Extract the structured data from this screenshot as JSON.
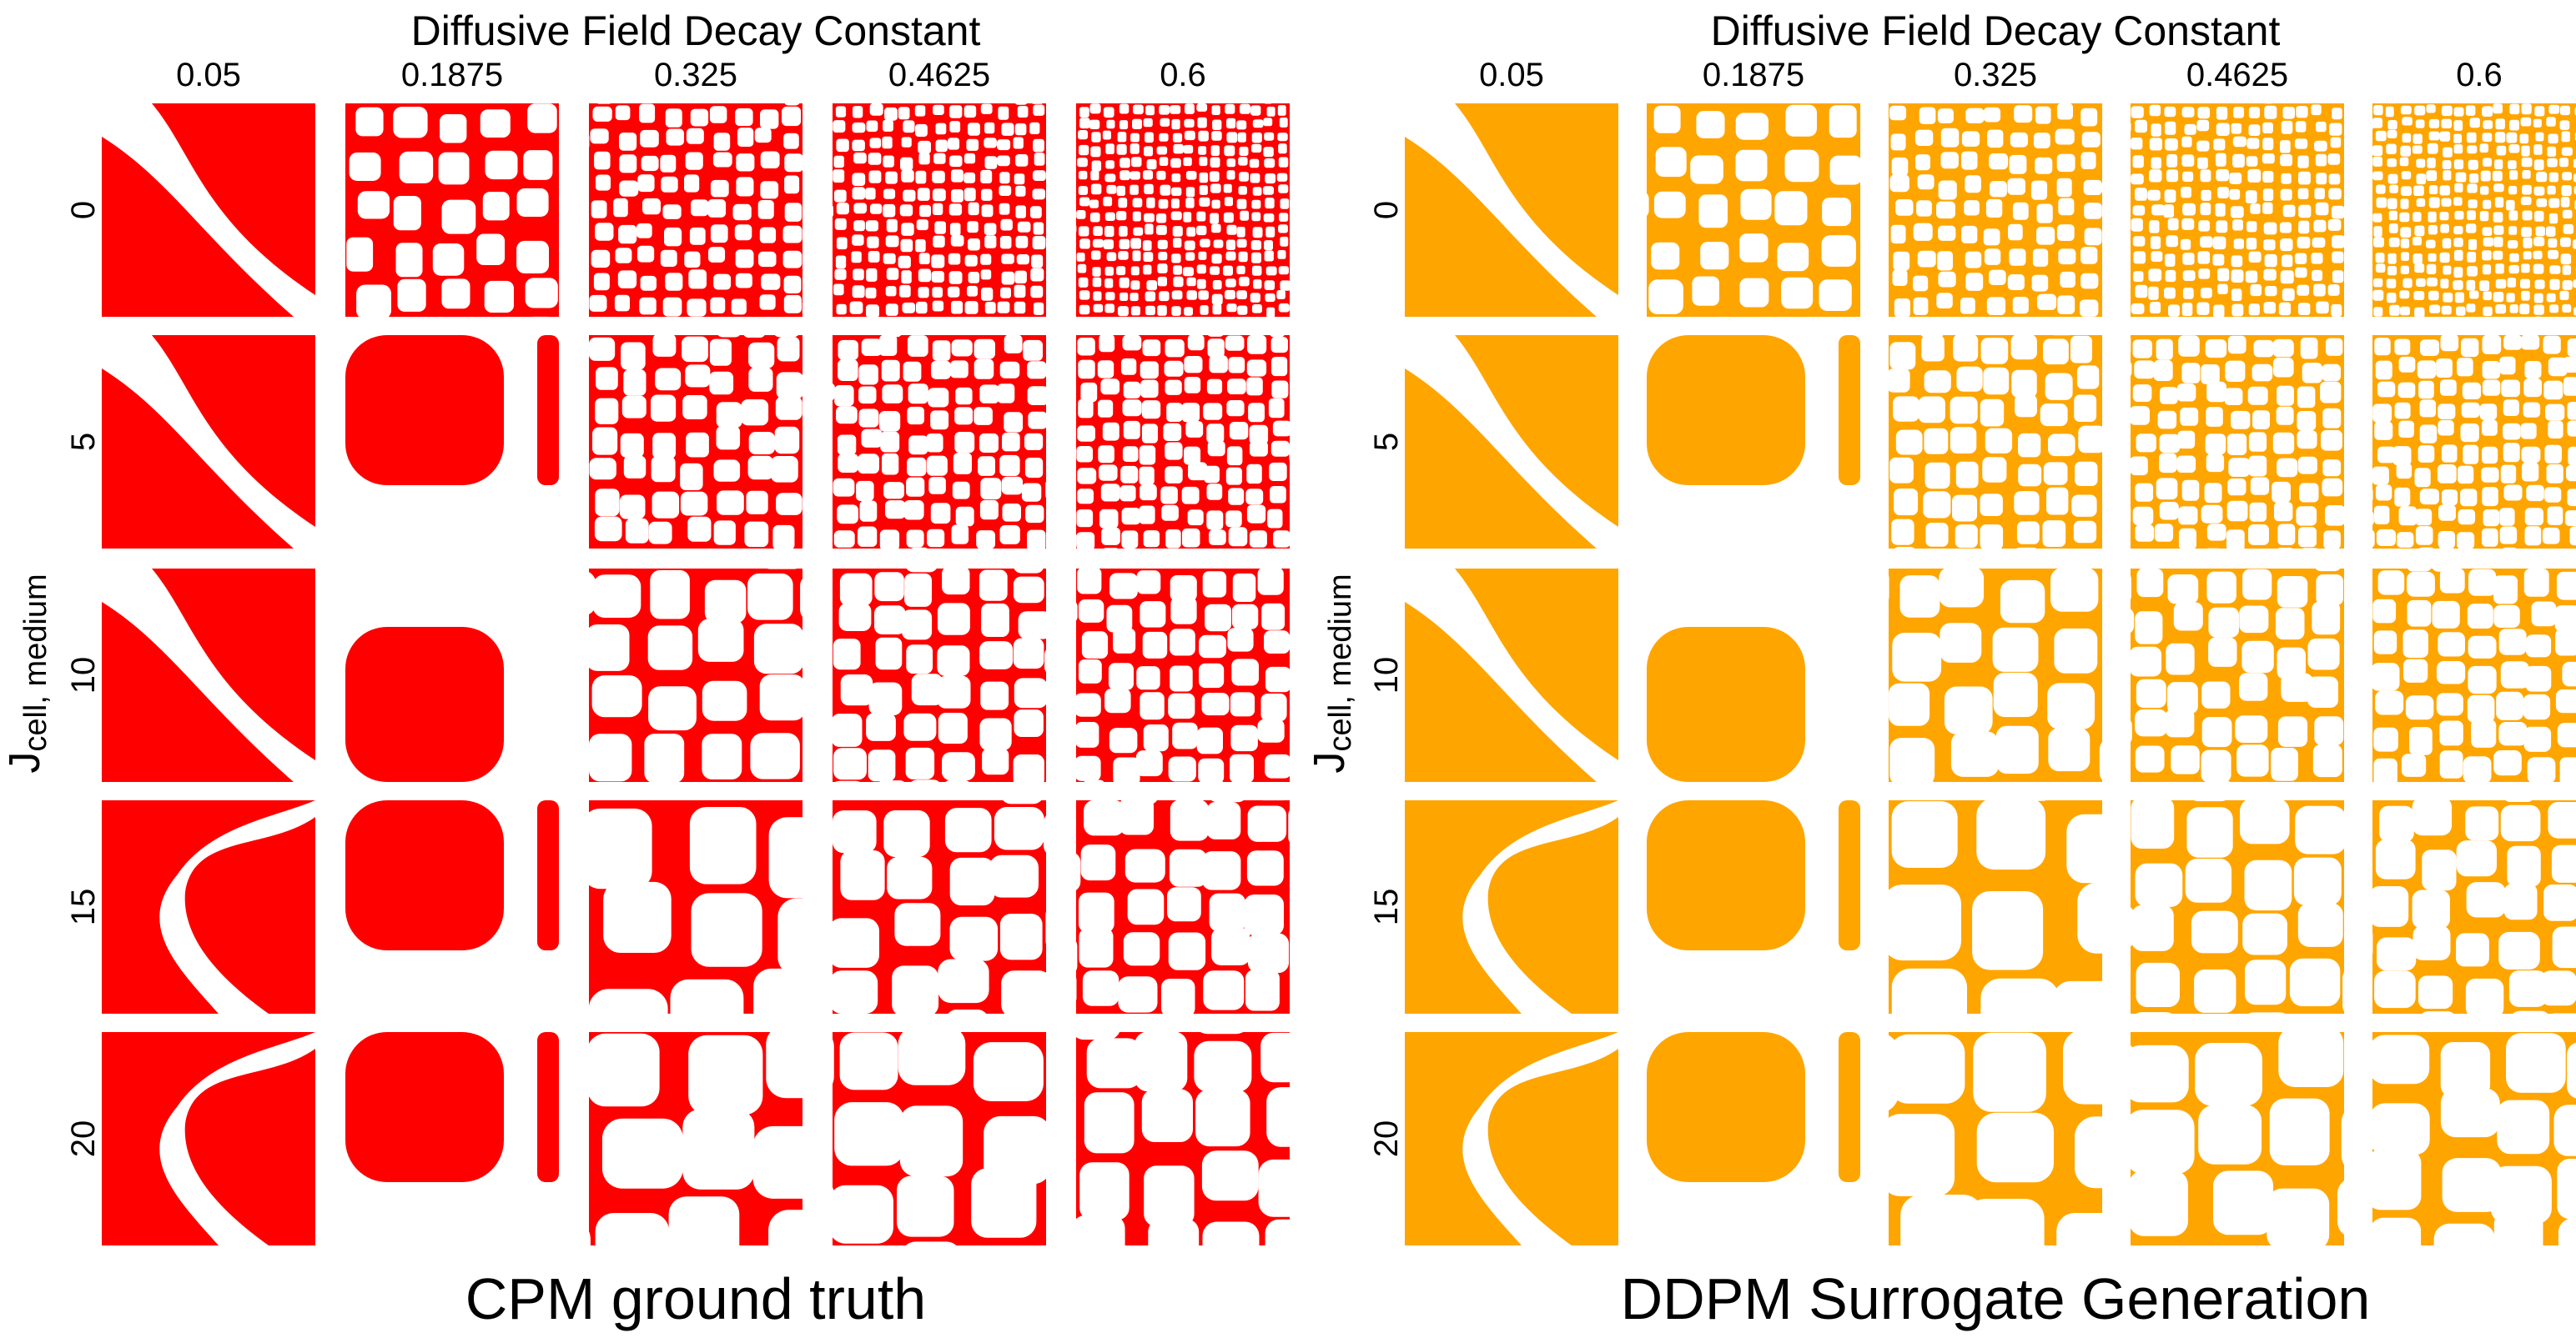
{
  "panels": [
    {
      "title": "Diffusive Field Decay Constant",
      "caption": "CPM ground truth",
      "color": "#ff0000",
      "y_label_main": "J",
      "y_label_sub": "cell, medium"
    },
    {
      "title": "Diffusive Field Decay Constant",
      "caption": "DDPM Surrogate Generation",
      "color": "#ffa500",
      "y_label_main": "J",
      "y_label_sub": "cell, medium"
    }
  ],
  "columns": [
    "0.05",
    "0.1875",
    "0.325",
    "0.4625",
    "0.6"
  ],
  "rows": [
    "0",
    "5",
    "10",
    "15",
    "20"
  ]
}
